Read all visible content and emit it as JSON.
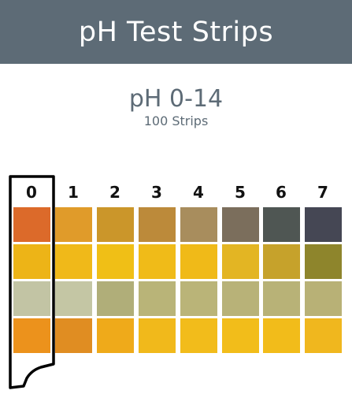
{
  "header": {
    "title": "pH Test Strips"
  },
  "product": {
    "range": "pH 0-14",
    "count": "100 Strips"
  },
  "chart_data": {
    "type": "table",
    "columns": [
      "0",
      "1",
      "2",
      "3",
      "4",
      "5",
      "6",
      "7"
    ],
    "selected_column": "0",
    "pad_colors": [
      [
        "#dc6a2a",
        "#e09b2a",
        "#cb962a",
        "#bc8a3a",
        "#a88d5d",
        "#7b6e5c",
        "#4f5653",
        "#454754"
      ],
      [
        "#edb417",
        "#f0b919",
        "#f0bf16",
        "#f0bb18",
        "#f0ba18",
        "#e3b523",
        "#c6a22b",
        "#8e852c"
      ],
      [
        "#c2c4a4",
        "#c4c6a4",
        "#b0ae79",
        "#b9b478",
        "#bab478",
        "#b8b278",
        "#b8b277",
        "#b8b176"
      ],
      [
        "#ec921c",
        "#e08d22",
        "#efaa1a",
        "#f1b91b",
        "#f2bc1b",
        "#f2bd1a",
        "#f2bc1a",
        "#f0b71e"
      ]
    ]
  }
}
